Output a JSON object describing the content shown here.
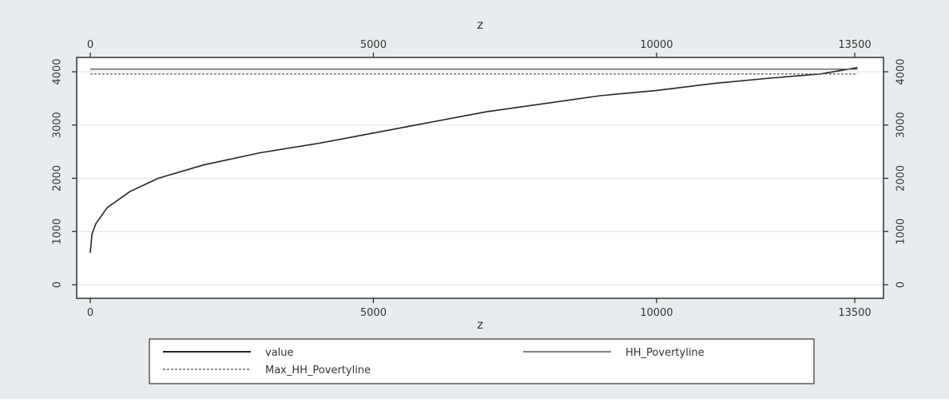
{
  "chart_data": {
    "type": "line",
    "x_label": "z",
    "x_ticks": [
      0,
      5000,
      10000,
      13500
    ],
    "x_tick_labels": [
      "0",
      "5000",
      "10000",
      "13500"
    ],
    "xlim": [
      0,
      13500
    ],
    "y_ticks": [
      0,
      1000,
      2000,
      3000,
      4000
    ],
    "y_tick_labels": [
      "0",
      "1000",
      "2000",
      "3000",
      "4000"
    ],
    "ylim": [
      -250,
      4300
    ],
    "axes_mirrored": true,
    "grid": true,
    "legend_position": "bottom",
    "series": [
      {
        "name": "value",
        "color": "#222222",
        "style": "solid",
        "x": [
          0,
          30,
          100,
          300,
          700,
          1200,
          2000,
          3000,
          4000,
          5000,
          6000,
          7000,
          8000,
          9000,
          10000,
          11000,
          12000,
          12900,
          13550
        ],
        "y": [
          600,
          950,
          1150,
          1450,
          1750,
          2000,
          2250,
          2480,
          2650,
          2850,
          3050,
          3250,
          3400,
          3550,
          3650,
          3780,
          3880,
          3960,
          4080
        ]
      },
      {
        "name": "HH_Povertyline",
        "color": "#555555",
        "style": "solid",
        "x": [
          0,
          13550
        ],
        "y": [
          4050,
          4050
        ]
      },
      {
        "name": "Max_HH_Povertyline",
        "color": "#666666",
        "style": "dashed",
        "x": [
          0,
          13550
        ],
        "y": [
          3960,
          3960
        ]
      }
    ]
  },
  "legend": {
    "row1_left": "value",
    "row1_right": "HH_Povertyline",
    "row2_left": "Max_HH_Povertyline"
  },
  "colors": {
    "plot_background": "#ffffff",
    "outer_background": "#e8ecee",
    "grid": "#dde3e6"
  }
}
